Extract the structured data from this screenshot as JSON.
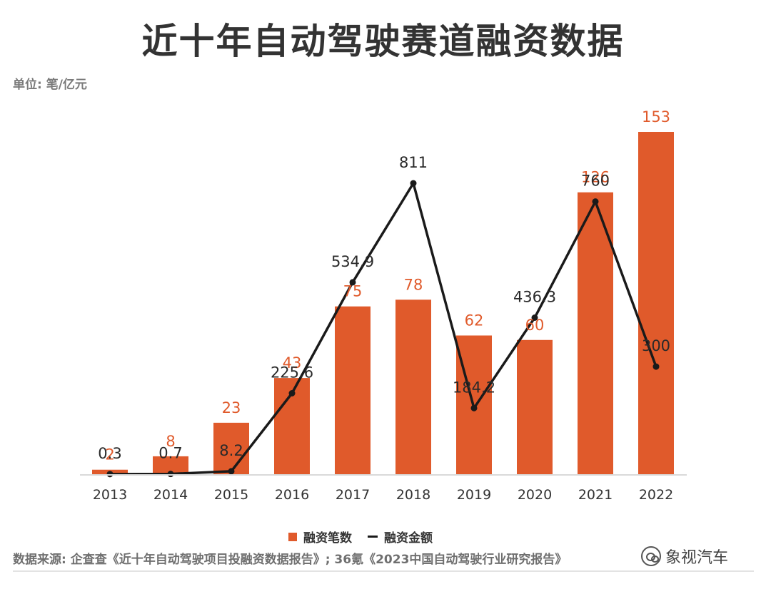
{
  "title": "近十年自动驾驶赛道融资数据",
  "unit_label": "单位: 笔/亿元",
  "legend": {
    "count_label": "融资笔数",
    "amount_label": "融资金额"
  },
  "source": "数据来源: 企查查《近十年自动驾驶项目投融资数据报告》; 36氪《2023中国自动驾驶行业研究报告》",
  "brand_label": "象视汽车",
  "colors": {
    "bar": "#E05A2B",
    "line": "#1A1A1A",
    "bar_label": "#E05A2B",
    "line_label": "#2a2a2a",
    "axis": "#d9d9d9"
  },
  "chart_data": {
    "type": "bar",
    "categories": [
      "2013",
      "2014",
      "2015",
      "2016",
      "2017",
      "2018",
      "2019",
      "2020",
      "2021",
      "2022"
    ],
    "series": [
      {
        "name": "融资笔数",
        "type": "bar",
        "values": [
          2,
          8,
          23,
          43,
          75,
          78,
          62,
          60,
          126,
          153
        ],
        "labels": [
          "2",
          "8",
          "23",
          "43",
          "75",
          "78",
          "62",
          "60",
          "126",
          "153"
        ]
      },
      {
        "name": "融资金额",
        "type": "line",
        "values": [
          0.3,
          0.7,
          8.2,
          225.6,
          534.9,
          811,
          184.2,
          436.3,
          760,
          300
        ],
        "labels": [
          "0.3",
          "0.7",
          "8.2",
          "225.6",
          "534.9",
          "811",
          "184.2",
          "436.3",
          "760",
          "300"
        ]
      }
    ],
    "title": "近十年自动驾驶赛道融资数据",
    "xlabel": "",
    "ylabel": "单位: 笔/亿元",
    "legend_position": "bottom-center",
    "grid": false
  }
}
